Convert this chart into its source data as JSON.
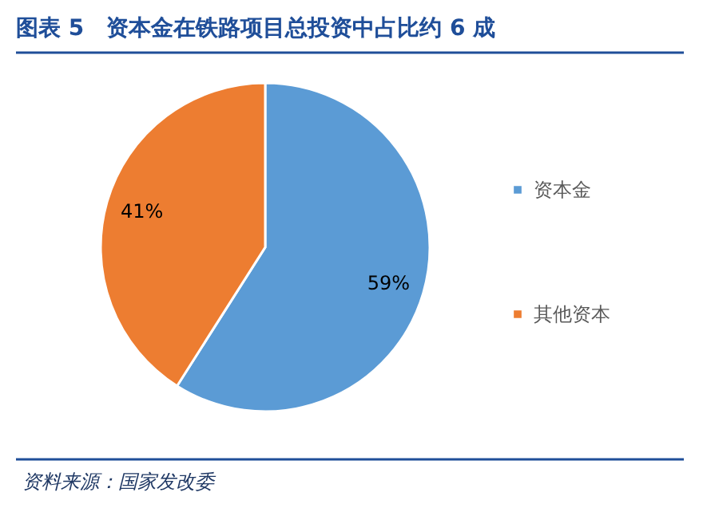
{
  "chart_data": {
    "type": "pie",
    "title": "图表 5　资本金在铁路项目总投资中占比约 6 成",
    "categories": [
      "资本金",
      "其他资本"
    ],
    "values": [
      59,
      41
    ],
    "colors": [
      "#5b9bd5",
      "#ed7d31"
    ],
    "value_labels": [
      "59%",
      "41%"
    ],
    "legend": "right",
    "annotations": [
      "资料来源：国家发改委"
    ]
  }
}
